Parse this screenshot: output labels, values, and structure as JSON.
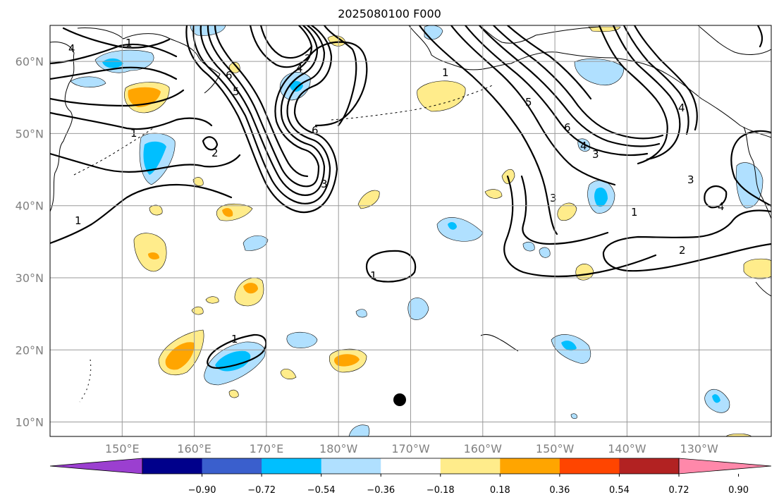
{
  "title": "2025080100 F000",
  "lat_labels": [
    "60°N",
    "50°N",
    "40°N",
    "30°N",
    "20°N",
    "10°N"
  ],
  "lon_labels": [
    "150°E",
    "160°E",
    "170°E",
    "180°W",
    "170°W",
    "160°W",
    "150°W",
    "140°W",
    "130°W"
  ],
  "colorbar": {
    "tick_labels": [
      "−0.90",
      "−0.72",
      "−0.54",
      "−0.36",
      "−0.18",
      "0.18",
      "0.36",
      "0.54",
      "0.72",
      "0.90"
    ],
    "colors": [
      "#9b3fd0",
      "#00008b",
      "#3a5fcd",
      "#00bfff",
      "#b0e0ff",
      "#ffffff",
      "#ffec8b",
      "#ffa500",
      "#ff4500",
      "#b22222",
      "#ff88aa"
    ]
  },
  "contour_labels": [
    "1",
    "2",
    "3",
    "4",
    "5",
    "6"
  ],
  "extent": {
    "lon_min": 140,
    "lon_max": 240,
    "lat_min": 8,
    "lat_max": 65
  }
}
